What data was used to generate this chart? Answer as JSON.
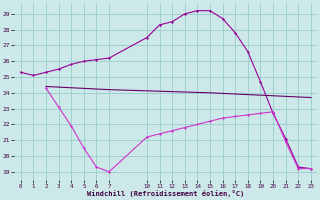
{
  "xlabel": "Windchill (Refroidissement éolien,°C)",
  "bg_color": "#cce8e8",
  "grid_color": "#99cccc",
  "line_color1": "#990099",
  "line_color2": "#660066",
  "line_color3": "#cc33cc",
  "ylim": [
    18.5,
    29.7
  ],
  "xlim": [
    -0.5,
    23.5
  ],
  "yticks": [
    19,
    20,
    21,
    22,
    23,
    24,
    25,
    26,
    27,
    28,
    29
  ],
  "xtick_positions": [
    0,
    1,
    2,
    3,
    4,
    5,
    6,
    7,
    10,
    11,
    12,
    13,
    14,
    15,
    16,
    17,
    18,
    19,
    20,
    21,
    22,
    23
  ],
  "xtick_labels": [
    "0",
    "1",
    "2",
    "3",
    "4",
    "5",
    "6",
    "7",
    "10",
    "11",
    "12",
    "13",
    "14",
    "15",
    "16",
    "17",
    "18",
    "19",
    "20",
    "21",
    "22",
    "23"
  ],
  "curve1_x": [
    0,
    1,
    2,
    3,
    4,
    5,
    6,
    7,
    10,
    11,
    12,
    13,
    14,
    15,
    16,
    17,
    18,
    19,
    20,
    21,
    22,
    23
  ],
  "curve1_y": [
    25.3,
    25.1,
    25.3,
    25.5,
    25.8,
    26.0,
    26.1,
    26.2,
    27.5,
    28.3,
    28.5,
    29.0,
    29.2,
    29.2,
    28.7,
    27.8,
    26.6,
    24.7,
    22.7,
    21.1,
    19.3,
    19.2
  ],
  "curve2_x": [
    2,
    7,
    15,
    23
  ],
  "curve2_y": [
    24.4,
    24.2,
    24.0,
    23.7
  ],
  "curve3_x": [
    2,
    3,
    4,
    5,
    6,
    7,
    10,
    11,
    12,
    13,
    14,
    15,
    16,
    17,
    18,
    19,
    20,
    21,
    22,
    23
  ],
  "curve3_y": [
    24.3,
    23.1,
    21.9,
    20.5,
    19.3,
    19.0,
    21.2,
    21.4,
    21.6,
    21.8,
    22.0,
    22.2,
    22.4,
    22.5,
    22.6,
    22.7,
    22.8,
    20.9,
    19.2,
    19.2
  ]
}
